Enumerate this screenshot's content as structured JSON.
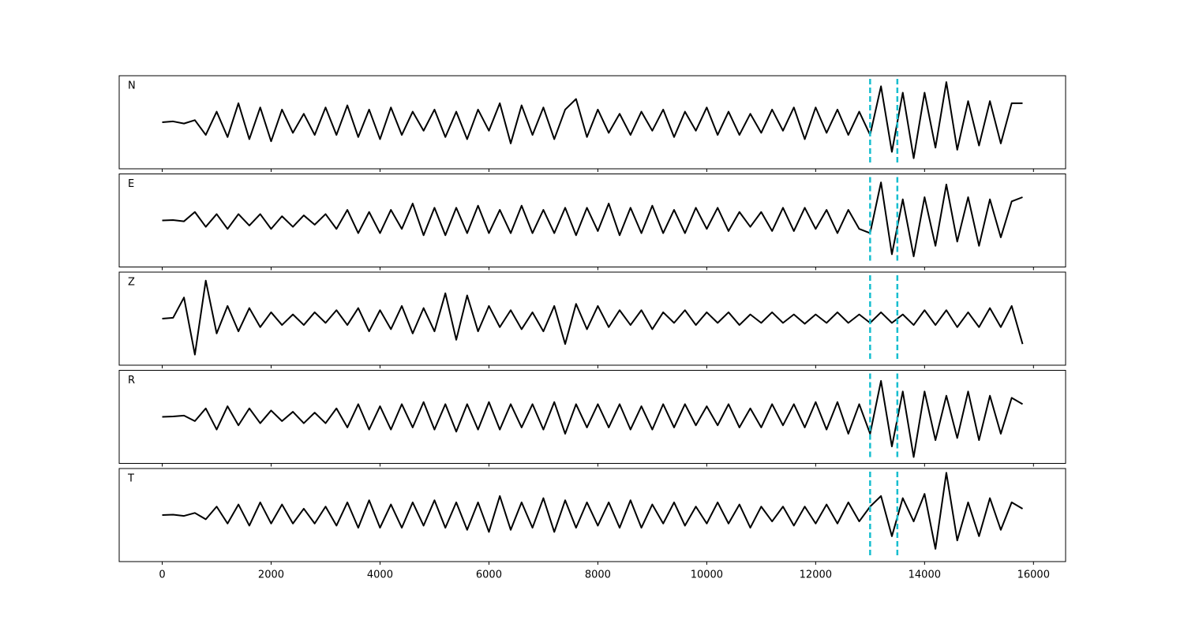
{
  "chart_data": {
    "type": "line",
    "x": [
      0,
      200,
      400,
      600,
      800,
      1000,
      1200,
      1400,
      1600,
      1800,
      2000,
      2200,
      2400,
      2600,
      2800,
      3000,
      3200,
      3400,
      3600,
      3800,
      4000,
      4200,
      4400,
      4600,
      4800,
      5000,
      5200,
      5400,
      5600,
      5800,
      6000,
      6200,
      6400,
      6600,
      6800,
      7000,
      7200,
      7400,
      7600,
      7800,
      8000,
      8200,
      8400,
      8600,
      8800,
      9000,
      9200,
      9400,
      9600,
      9800,
      10000,
      10200,
      10400,
      10600,
      10800,
      11000,
      11200,
      11400,
      11600,
      11800,
      12000,
      12200,
      12400,
      12600,
      12800,
      13000,
      13200,
      13400,
      13600,
      13800,
      14000,
      14200,
      14400,
      14600,
      14800,
      15000,
      15200,
      15400,
      15600,
      15800
    ],
    "xlim": [
      -790,
      16590
    ],
    "xticks": [
      0,
      2000,
      4000,
      6000,
      8000,
      10000,
      12000,
      14000,
      16000
    ],
    "ylim": [
      -1.1,
      1.1
    ],
    "series": [
      {
        "name": "N",
        "color": "#000000",
        "values": [
          0,
          0.02,
          -0.03,
          0.05,
          -0.3,
          0.25,
          -0.35,
          0.45,
          -0.4,
          0.35,
          -0.45,
          0.3,
          -0.25,
          0.2,
          -0.3,
          0.35,
          -0.3,
          0.4,
          -0.35,
          0.3,
          -0.4,
          0.35,
          -0.3,
          0.25,
          -0.2,
          0.3,
          -0.35,
          0.25,
          -0.4,
          0.3,
          -0.2,
          0.45,
          -0.5,
          0.4,
          -0.3,
          0.35,
          -0.4,
          0.3,
          0.55,
          -0.35,
          0.3,
          -0.25,
          0.2,
          -0.3,
          0.25,
          -0.2,
          0.3,
          -0.35,
          0.25,
          -0.2,
          0.35,
          -0.3,
          0.25,
          -0.3,
          0.2,
          -0.25,
          0.3,
          -0.2,
          0.35,
          -0.4,
          0.35,
          -0.25,
          0.3,
          -0.3,
          0.25,
          -0.3,
          0.85,
          -0.7,
          0.7,
          -0.85,
          0.7,
          -0.6,
          0.95,
          -0.65,
          0.5,
          -0.55,
          0.5,
          -0.5,
          0.45,
          0.45
        ]
      },
      {
        "name": "E",
        "color": "#000000",
        "values": [
          0,
          0.01,
          -0.02,
          0.2,
          -0.15,
          0.15,
          -0.2,
          0.15,
          -0.12,
          0.15,
          -0.2,
          0.1,
          -0.15,
          0.12,
          -0.1,
          0.15,
          -0.2,
          0.25,
          -0.3,
          0.2,
          -0.3,
          0.25,
          -0.2,
          0.4,
          -0.35,
          0.3,
          -0.35,
          0.3,
          -0.3,
          0.35,
          -0.3,
          0.25,
          -0.3,
          0.35,
          -0.3,
          0.25,
          -0.3,
          0.3,
          -0.35,
          0.3,
          -0.25,
          0.4,
          -0.35,
          0.3,
          -0.3,
          0.35,
          -0.3,
          0.25,
          -0.3,
          0.3,
          -0.2,
          0.3,
          -0.25,
          0.2,
          -0.15,
          0.2,
          -0.25,
          0.3,
          -0.25,
          0.3,
          -0.2,
          0.25,
          -0.3,
          0.25,
          -0.2,
          -0.3,
          0.9,
          -0.8,
          0.5,
          -0.85,
          0.55,
          -0.6,
          0.85,
          -0.5,
          0.55,
          -0.6,
          0.5,
          -0.4,
          0.45,
          0.55
        ]
      },
      {
        "name": "Z",
        "color": "#000000",
        "values": [
          0,
          0.02,
          0.5,
          -0.85,
          0.9,
          -0.35,
          0.3,
          -0.3,
          0.25,
          -0.2,
          0.15,
          -0.15,
          0.1,
          -0.15,
          0.15,
          -0.1,
          0.2,
          -0.15,
          0.25,
          -0.3,
          0.2,
          -0.25,
          0.3,
          -0.35,
          0.25,
          -0.3,
          0.6,
          -0.5,
          0.55,
          -0.3,
          0.3,
          -0.2,
          0.2,
          -0.25,
          0.15,
          -0.3,
          0.3,
          -0.6,
          0.35,
          -0.25,
          0.3,
          -0.2,
          0.2,
          -0.15,
          0.2,
          -0.25,
          0.15,
          -0.1,
          0.2,
          -0.15,
          0.15,
          -0.1,
          0.15,
          -0.15,
          0.1,
          -0.1,
          0.15,
          -0.1,
          0.1,
          -0.12,
          0.1,
          -0.1,
          0.15,
          -0.1,
          0.1,
          -0.1,
          0.15,
          -0.1,
          0.1,
          -0.15,
          0.2,
          -0.15,
          0.2,
          -0.2,
          0.15,
          -0.2,
          0.25,
          -0.2,
          0.3,
          -0.6
        ]
      },
      {
        "name": "R",
        "color": "#000000",
        "values": [
          0,
          0.01,
          0.03,
          -0.1,
          0.2,
          -0.3,
          0.25,
          -0.2,
          0.2,
          -0.15,
          0.15,
          -0.1,
          0.12,
          -0.15,
          0.1,
          -0.15,
          0.2,
          -0.25,
          0.3,
          -0.3,
          0.25,
          -0.3,
          0.3,
          -0.25,
          0.35,
          -0.3,
          0.3,
          -0.35,
          0.3,
          -0.3,
          0.35,
          -0.3,
          0.3,
          -0.25,
          0.3,
          -0.3,
          0.35,
          -0.4,
          0.3,
          -0.25,
          0.3,
          -0.25,
          0.3,
          -0.3,
          0.25,
          -0.3,
          0.3,
          -0.25,
          0.3,
          -0.2,
          0.25,
          -0.2,
          0.3,
          -0.25,
          0.2,
          -0.25,
          0.3,
          -0.2,
          0.3,
          -0.25,
          0.35,
          -0.3,
          0.35,
          -0.4,
          0.3,
          -0.4,
          0.85,
          -0.7,
          0.6,
          -0.95,
          0.6,
          -0.55,
          0.5,
          -0.5,
          0.6,
          -0.55,
          0.5,
          -0.4,
          0.45,
          0.3
        ]
      },
      {
        "name": "T",
        "color": "#000000",
        "values": [
          0,
          0.01,
          -0.02,
          0.05,
          -0.1,
          0.2,
          -0.2,
          0.25,
          -0.25,
          0.3,
          -0.2,
          0.25,
          -0.2,
          0.15,
          -0.2,
          0.2,
          -0.25,
          0.3,
          -0.3,
          0.35,
          -0.3,
          0.25,
          -0.3,
          0.3,
          -0.25,
          0.35,
          -0.3,
          0.3,
          -0.35,
          0.3,
          -0.4,
          0.45,
          -0.35,
          0.3,
          -0.3,
          0.4,
          -0.4,
          0.35,
          -0.3,
          0.3,
          -0.25,
          0.3,
          -0.3,
          0.35,
          -0.3,
          0.25,
          -0.2,
          0.3,
          -0.25,
          0.2,
          -0.2,
          0.3,
          -0.2,
          0.25,
          -0.3,
          0.2,
          -0.15,
          0.2,
          -0.25,
          0.2,
          -0.2,
          0.25,
          -0.2,
          0.3,
          -0.15,
          0.2,
          0.45,
          -0.5,
          0.4,
          -0.15,
          0.5,
          -0.8,
          1.0,
          -0.6,
          0.3,
          -0.5,
          0.4,
          -0.35,
          0.3,
          0.15
        ]
      }
    ],
    "vlines": [
      13000,
      13500
    ],
    "vline_color": "#17becf"
  }
}
